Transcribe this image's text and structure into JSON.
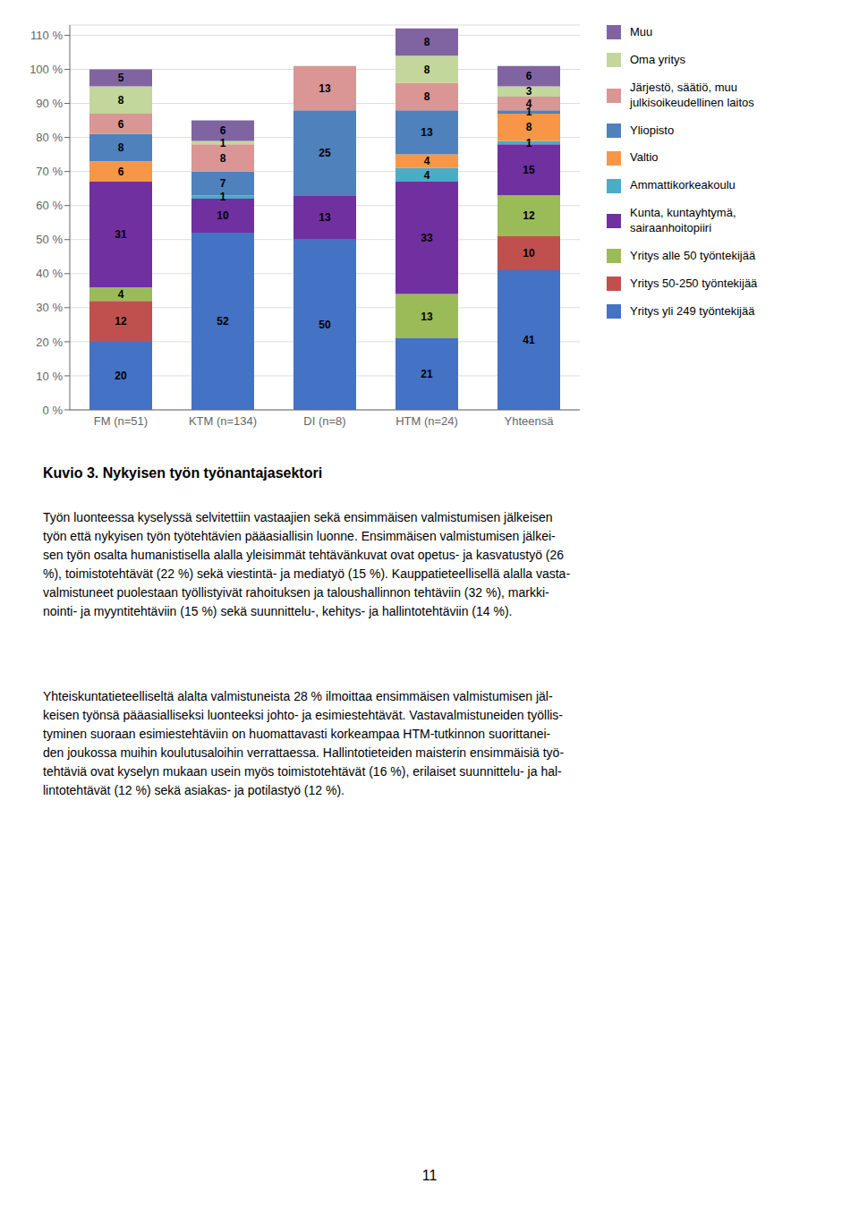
{
  "chart_data": {
    "type": "bar",
    "stacked": true,
    "title": "Kuvio 3. Nykyisen työn työnantajasektori",
    "categories": [
      "FM (n=51)",
      "KTM (n=134)",
      "DI (n=8)",
      "HTM (n=24)",
      "Yhteensä"
    ],
    "series": [
      {
        "name": "Yritys yli 249 työntekijää",
        "color": "#4472C4",
        "values": [
          20,
          52,
          50,
          21,
          41
        ]
      },
      {
        "name": "Yritys 50-250 työntekijää",
        "color": "#C0504D",
        "values": [
          12,
          0,
          0,
          0,
          10
        ]
      },
      {
        "name": "Yritys alle 50 työntekijää",
        "color": "#9BBB59",
        "values": [
          4,
          0,
          0,
          13,
          12
        ]
      },
      {
        "name": "Kunta, kuntayhtymä,\nsairaanhoitopiiri",
        "color": "#7030A0",
        "values": [
          31,
          10,
          13,
          33,
          15
        ]
      },
      {
        "name": "Ammattikorkeakoulu",
        "color": "#4BACC6",
        "values": [
          0,
          1,
          0,
          4,
          1
        ]
      },
      {
        "name": "Valtio",
        "color": "#F79646",
        "values": [
          6,
          0,
          0,
          4,
          8
        ]
      },
      {
        "name": "Yliopisto",
        "color": "#4F81BD",
        "values": [
          8,
          7,
          25,
          13,
          1
        ]
      },
      {
        "name": "Järjestö, säätiö, muu\njulkisoikeudellinen laitos",
        "color": "#D99694",
        "values": [
          6,
          8,
          13,
          8,
          4
        ]
      },
      {
        "name": "Oma yritys",
        "color": "#C3D69B",
        "values": [
          8,
          1,
          0,
          8,
          3
        ]
      },
      {
        "name": "Muu",
        "color": "#8064A2",
        "values": [
          5,
          6,
          0,
          8,
          6
        ]
      }
    ],
    "ylim": [
      0,
      113
    ],
    "yticks": [
      {
        "value": 0,
        "label": "0 %"
      },
      {
        "value": 10,
        "label": "10 %"
      },
      {
        "value": 20,
        "label": "20 %"
      },
      {
        "value": 30,
        "label": "30 %"
      },
      {
        "value": 40,
        "label": "40 %"
      },
      {
        "value": 50,
        "label": "50 %"
      },
      {
        "value": 60,
        "label": "60 %"
      },
      {
        "value": 70,
        "label": "70 %"
      },
      {
        "value": 80,
        "label": "80 %"
      },
      {
        "value": 90,
        "label": "90 %"
      },
      {
        "value": 100,
        "label": "100 %"
      },
      {
        "value": 110,
        "label": "110 %"
      }
    ],
    "grid": true,
    "legend": "right",
    "data_labels": true,
    "annotations": [
      "Työn luonteessa kyselyssä selvitettiin vastaajien sekä ensimmäisen valmistumisen jälkeisen\ntyön että nykyisen työn työtehtävien pääasiallisin luonne. Ensimmäisen valmistumisen jälkei-\nsen työn osalta humanistisella alalla yleisimmät tehtävänkuvat ovat opetus- ja kasvatustyö (26\n%), toimistotehtävät (22 %) sekä viestintä- ja mediatyö (15 %). Kauppatieteellisellä alalla vasta-\nvalmistuneet puolestaan työllistyivät rahoituksen ja taloushallinnon tehtäviin (32 %), markki-\nnointi- ja myyntitehtäviin (15 %) sekä suunnittelu-, kehitys- ja hallintotehtäviin (14 %).",
      "Yhteiskuntatieteelliseltä alalta valmistuneista 28 % ilmoittaa ensimmäisen valmistumisen jäl-\nkeisen työnsä pääasialliseksi luonteeksi johto- ja esimiestehtävät. Vastavalmistuneiden työllis-\ntyminen suoraan esimiestehtäviin on huomattavasti korkeampaa HTM-tutkinnon suorittanei-\nden joukossa muihin koulutusaloihin verrattaessa. Hallintotieteiden maisterin ensimmäisiä työ-\ntehtäviä ovat kyselyn mukaan usein myös toimistotehtävät (16 %), erilaiset suunnittelu- ja hal-\nlintotehtävät (12 %) sekä asiakas- ja potilastyö (12 %).",
      "11"
    ]
  }
}
